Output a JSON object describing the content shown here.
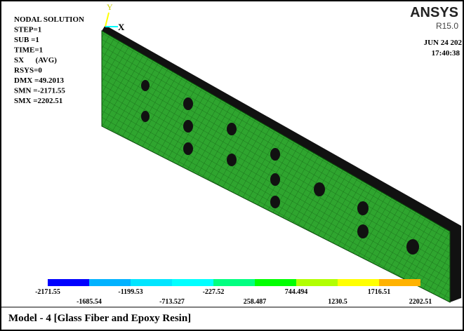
{
  "header": {
    "lines": [
      "NODAL SOLUTION",
      "STEP=1",
      "SUB =1",
      "TIME=1",
      "SX      (AVG)",
      "RSYS=0",
      "DMX =49.2013",
      "SMN =-2171.55",
      "SMX =2202.51"
    ],
    "brand": "ANSYS",
    "release": "R15.0",
    "date": "JUN 24 202",
    "time": "17:40:38"
  },
  "axes": {
    "y": "Y",
    "x": "X"
  },
  "legend": {
    "labels": [
      "-2171.55",
      "-1685.54",
      "-1199.53",
      "-713.527",
      "-227.52",
      "258.487",
      "744.494",
      "1230.5",
      "1716.51",
      "2202.51"
    ],
    "colors": [
      "#0000ff",
      "#00b2ff",
      "#00e5ff",
      "#00ffff",
      "#00ff80",
      "#00ff00",
      "#b2ff00",
      "#ffff00",
      "#ffb200",
      "#ff0000"
    ]
  },
  "caption": "Model - 4 [Glass Fiber and  Epoxy Resin]"
}
